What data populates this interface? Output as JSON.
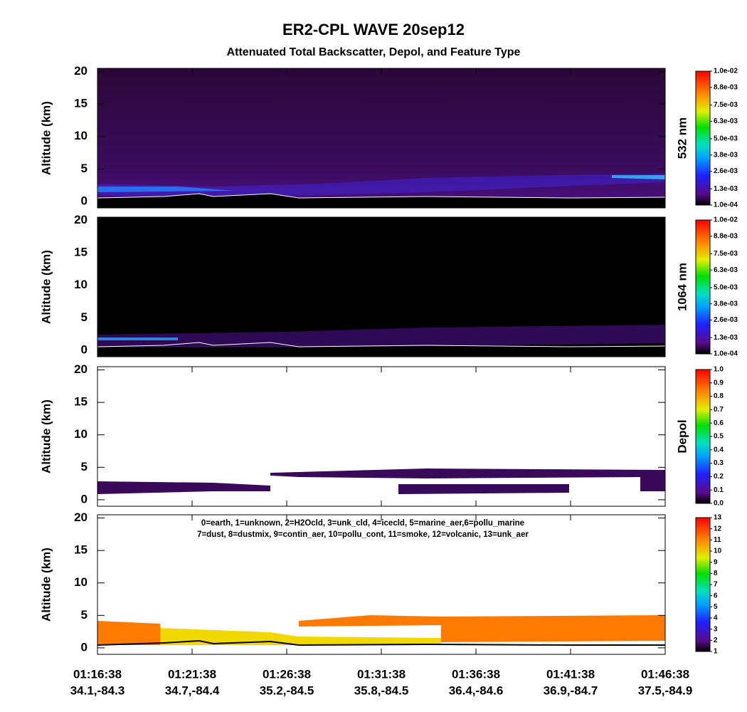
{
  "title": "ER2-CPL WAVE 20sep12",
  "subtitle": "Attenuated Total Backscatter, Depol, and Feature Type",
  "x_axis": {
    "ticks": [
      [
        "01:16:38",
        "34.1,-84.3"
      ],
      [
        "01:21:38",
        "34.7,-84.4"
      ],
      [
        "01:26:38",
        "35.2,-84.5"
      ],
      [
        "01:31:38",
        "35.8,-84.5"
      ],
      [
        "01:36:38",
        "36.4,-84.6"
      ],
      [
        "01:41:38",
        "36.9,-84.7"
      ],
      [
        "01:46:38",
        "37.5,-84.9"
      ]
    ]
  },
  "chart_data": [
    {
      "type": "heatmap",
      "ylabel": "Altitude (km)",
      "ylim": [
        -1,
        20.5
      ],
      "yticks": [
        0,
        5,
        10,
        15,
        20
      ],
      "colorbar_label": "532 nm",
      "clim": [
        0.0001,
        0.01
      ],
      "cticks": [
        {
          "value": 0.0001,
          "label": "1.0e-04"
        },
        {
          "value": 0.0013,
          "label": "1.3e-03"
        },
        {
          "value": 0.0026,
          "label": "2.6e-03"
        },
        {
          "value": 0.0038,
          "label": "3.8e-03"
        },
        {
          "value": 0.005,
          "label": "5.0e-03"
        },
        {
          "value": 0.0063,
          "label": "6.3e-03"
        },
        {
          "value": 0.0075,
          "label": "7.5e-03"
        },
        {
          "value": 0.0088,
          "label": "8.8e-03"
        },
        {
          "value": 0.01,
          "label": "1.0e-02"
        }
      ]
    },
    {
      "type": "heatmap",
      "ylabel": "Altitude (km)",
      "ylim": [
        -1,
        20.5
      ],
      "yticks": [
        0,
        5,
        10,
        15,
        20
      ],
      "colorbar_label": "1064 nm",
      "clim": [
        0.0001,
        0.01
      ],
      "cticks": [
        {
          "value": 0.0001,
          "label": "1.0e-04"
        },
        {
          "value": 0.0013,
          "label": "1.3e-03"
        },
        {
          "value": 0.0026,
          "label": "2.6e-03"
        },
        {
          "value": 0.0038,
          "label": "3.8e-03"
        },
        {
          "value": 0.005,
          "label": "5.0e-03"
        },
        {
          "value": 0.0063,
          "label": "6.3e-03"
        },
        {
          "value": 0.0075,
          "label": "7.5e-03"
        },
        {
          "value": 0.0088,
          "label": "8.8e-03"
        },
        {
          "value": 0.01,
          "label": "1.0e-02"
        }
      ]
    },
    {
      "type": "heatmap",
      "ylabel": "Altitude (km)",
      "ylim": [
        -1,
        20.5
      ],
      "yticks": [
        0,
        5,
        10,
        15,
        20
      ],
      "colorbar_label": "Depol",
      "clim": [
        0,
        1
      ],
      "cticks": [
        {
          "value": 0,
          "label": "0.0"
        },
        0.1,
        0.2,
        0.3,
        0.4,
        0.5,
        0.6,
        0.7,
        0.8,
        0.9,
        {
          "value": 1,
          "label": "1.0"
        }
      ]
    },
    {
      "type": "heatmap",
      "ylabel": "Altitude (km)",
      "ylim": [
        -1,
        20.5
      ],
      "yticks": [
        0,
        5,
        10,
        15,
        20
      ],
      "clim": [
        1,
        13
      ],
      "cticks": [
        1,
        2,
        3,
        4,
        5,
        6,
        7,
        8,
        9,
        10,
        11,
        12,
        13
      ],
      "annotations": [
        "0=earth, 1=unknown, 2=H2Ocld, 3=unk_cld, 4=icecld, 5=marine_aer,6=pollu_marine",
        "7=dust, 8=dustmix, 9=contin_aer, 10=pollu_cont, 11=smoke, 12=volcanic, 13=unk_aer"
      ]
    }
  ]
}
